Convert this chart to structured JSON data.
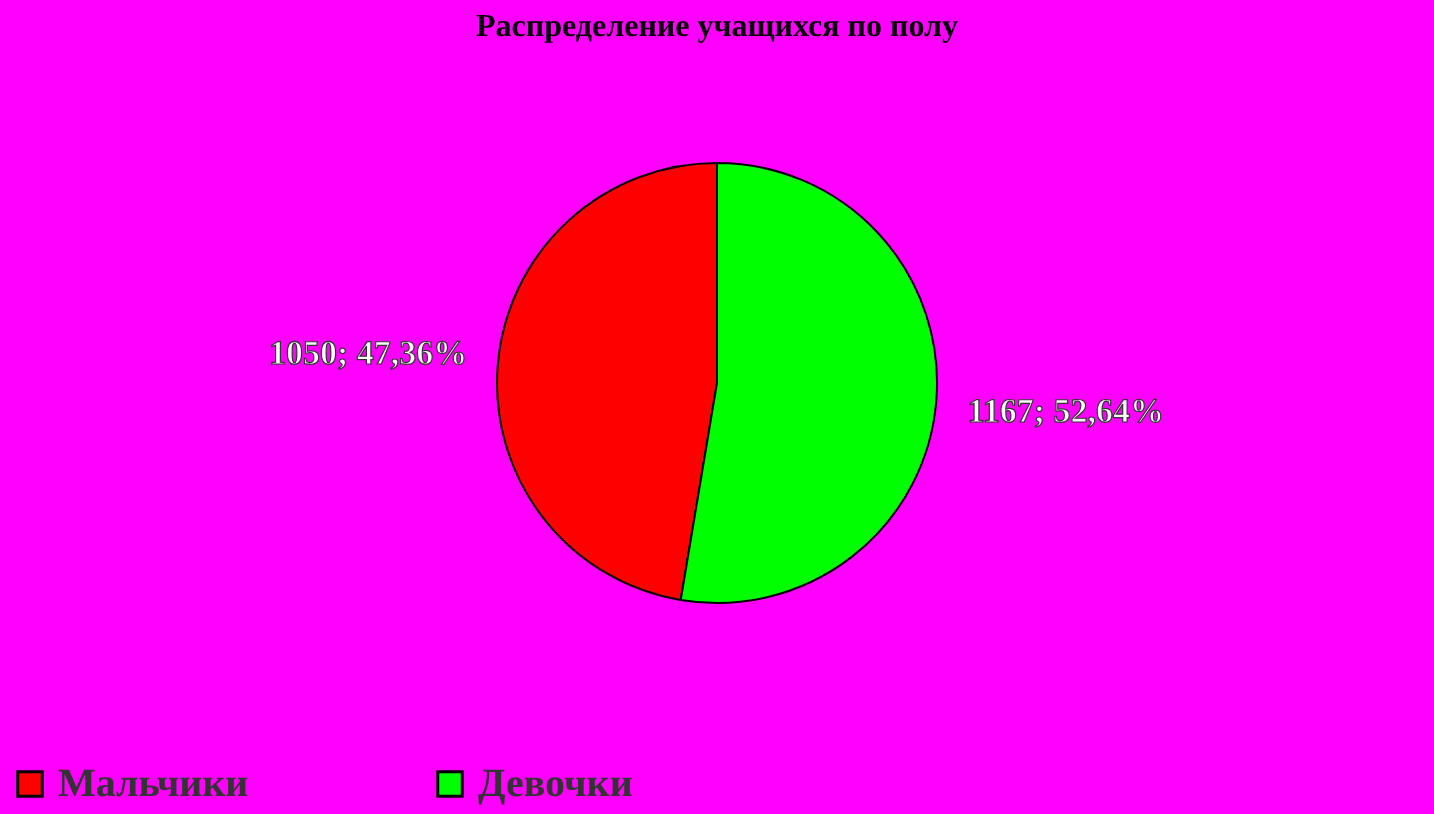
{
  "chart_data": {
    "type": "pie",
    "title": "Распределение учащихся по полу",
    "categories": [
      "Мальчики",
      "Девочки"
    ],
    "values": [
      1050,
      1167
    ],
    "colors": [
      "#ff0000",
      "#00ff00"
    ],
    "value_labels": [
      "1050; 47,36%",
      "1167; 52,64%"
    ],
    "legend": "bottom"
  }
}
